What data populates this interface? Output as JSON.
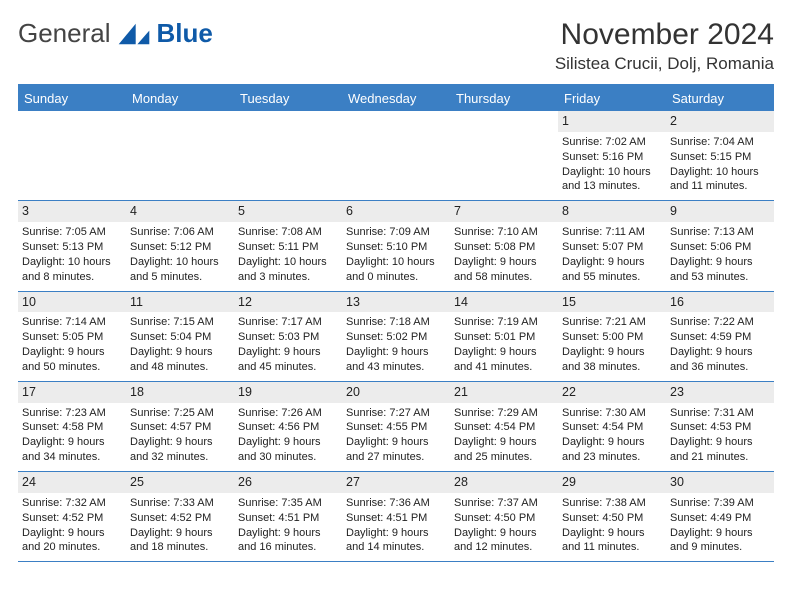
{
  "brand": {
    "word1": "General",
    "word2": "Blue"
  },
  "title": "November 2024",
  "location": "Silistea Crucii, Dolj, Romania",
  "dow": [
    "Sunday",
    "Monday",
    "Tuesday",
    "Wednesday",
    "Thursday",
    "Friday",
    "Saturday"
  ],
  "colors": {
    "header": "#3b7fc4",
    "accent": "#0f5aa8",
    "daynum_bg": "#ececec"
  },
  "weeks": [
    [
      null,
      null,
      null,
      null,
      null,
      {
        "n": "1",
        "sunrise": "7:02 AM",
        "sunset": "5:16 PM",
        "day_h": "10",
        "day_m": "13"
      },
      {
        "n": "2",
        "sunrise": "7:04 AM",
        "sunset": "5:15 PM",
        "day_h": "10",
        "day_m": "11"
      }
    ],
    [
      {
        "n": "3",
        "sunrise": "7:05 AM",
        "sunset": "5:13 PM",
        "day_h": "10",
        "day_m": "8"
      },
      {
        "n": "4",
        "sunrise": "7:06 AM",
        "sunset": "5:12 PM",
        "day_h": "10",
        "day_m": "5"
      },
      {
        "n": "5",
        "sunrise": "7:08 AM",
        "sunset": "5:11 PM",
        "day_h": "10",
        "day_m": "3"
      },
      {
        "n": "6",
        "sunrise": "7:09 AM",
        "sunset": "5:10 PM",
        "day_h": "10",
        "day_m": "0"
      },
      {
        "n": "7",
        "sunrise": "7:10 AM",
        "sunset": "5:08 PM",
        "day_h": "9",
        "day_m": "58"
      },
      {
        "n": "8",
        "sunrise": "7:11 AM",
        "sunset": "5:07 PM",
        "day_h": "9",
        "day_m": "55"
      },
      {
        "n": "9",
        "sunrise": "7:13 AM",
        "sunset": "5:06 PM",
        "day_h": "9",
        "day_m": "53"
      }
    ],
    [
      {
        "n": "10",
        "sunrise": "7:14 AM",
        "sunset": "5:05 PM",
        "day_h": "9",
        "day_m": "50"
      },
      {
        "n": "11",
        "sunrise": "7:15 AM",
        "sunset": "5:04 PM",
        "day_h": "9",
        "day_m": "48"
      },
      {
        "n": "12",
        "sunrise": "7:17 AM",
        "sunset": "5:03 PM",
        "day_h": "9",
        "day_m": "45"
      },
      {
        "n": "13",
        "sunrise": "7:18 AM",
        "sunset": "5:02 PM",
        "day_h": "9",
        "day_m": "43"
      },
      {
        "n": "14",
        "sunrise": "7:19 AM",
        "sunset": "5:01 PM",
        "day_h": "9",
        "day_m": "41"
      },
      {
        "n": "15",
        "sunrise": "7:21 AM",
        "sunset": "5:00 PM",
        "day_h": "9",
        "day_m": "38"
      },
      {
        "n": "16",
        "sunrise": "7:22 AM",
        "sunset": "4:59 PM",
        "day_h": "9",
        "day_m": "36"
      }
    ],
    [
      {
        "n": "17",
        "sunrise": "7:23 AM",
        "sunset": "4:58 PM",
        "day_h": "9",
        "day_m": "34"
      },
      {
        "n": "18",
        "sunrise": "7:25 AM",
        "sunset": "4:57 PM",
        "day_h": "9",
        "day_m": "32"
      },
      {
        "n": "19",
        "sunrise": "7:26 AM",
        "sunset": "4:56 PM",
        "day_h": "9",
        "day_m": "30"
      },
      {
        "n": "20",
        "sunrise": "7:27 AM",
        "sunset": "4:55 PM",
        "day_h": "9",
        "day_m": "27"
      },
      {
        "n": "21",
        "sunrise": "7:29 AM",
        "sunset": "4:54 PM",
        "day_h": "9",
        "day_m": "25"
      },
      {
        "n": "22",
        "sunrise": "7:30 AM",
        "sunset": "4:54 PM",
        "day_h": "9",
        "day_m": "23"
      },
      {
        "n": "23",
        "sunrise": "7:31 AM",
        "sunset": "4:53 PM",
        "day_h": "9",
        "day_m": "21"
      }
    ],
    [
      {
        "n": "24",
        "sunrise": "7:32 AM",
        "sunset": "4:52 PM",
        "day_h": "9",
        "day_m": "20"
      },
      {
        "n": "25",
        "sunrise": "7:33 AM",
        "sunset": "4:52 PM",
        "day_h": "9",
        "day_m": "18"
      },
      {
        "n": "26",
        "sunrise": "7:35 AM",
        "sunset": "4:51 PM",
        "day_h": "9",
        "day_m": "16"
      },
      {
        "n": "27",
        "sunrise": "7:36 AM",
        "sunset": "4:51 PM",
        "day_h": "9",
        "day_m": "14"
      },
      {
        "n": "28",
        "sunrise": "7:37 AM",
        "sunset": "4:50 PM",
        "day_h": "9",
        "day_m": "12"
      },
      {
        "n": "29",
        "sunrise": "7:38 AM",
        "sunset": "4:50 PM",
        "day_h": "9",
        "day_m": "11"
      },
      {
        "n": "30",
        "sunrise": "7:39 AM",
        "sunset": "4:49 PM",
        "day_h": "9",
        "day_m": "9"
      }
    ]
  ],
  "labels": {
    "sunrise": "Sunrise: ",
    "sunset": "Sunset: ",
    "day1": "Daylight: ",
    "day2": " hours and ",
    "day3": " minutes."
  }
}
